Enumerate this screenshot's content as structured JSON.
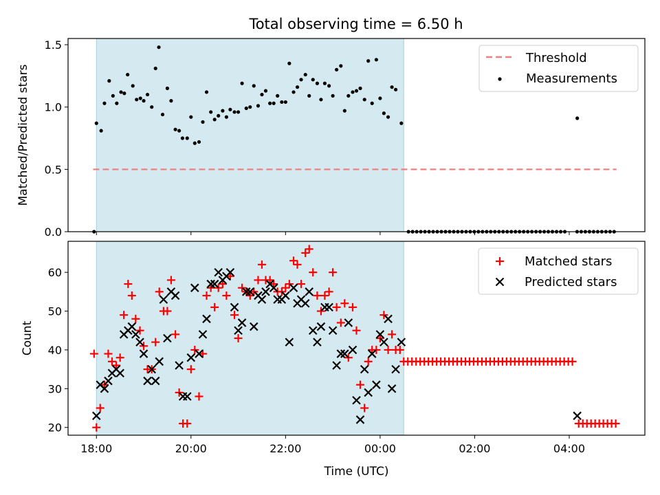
{
  "chart_data": [
    {
      "type": "scatter",
      "title": "Total observing time = 6.50 h",
      "xlabel": "",
      "ylabel": "Matched/Predicted stars",
      "xlim": [
        -0.6,
        11.6
      ],
      "ylim": [
        0,
        1.55
      ],
      "yticks": [
        0.0,
        0.5,
        1.0,
        1.5
      ],
      "ytick_labels": [
        "0.0",
        "0.5",
        "1.0",
        "1.5"
      ],
      "grid": false,
      "legend": "upper right",
      "shaded_interval": [
        0.0,
        6.5
      ],
      "shade_color": "#d4eaf0",
      "series": [
        {
          "name": "Threshold",
          "kind": "dashed-line",
          "color": "#f08080",
          "x": [
            -0.07,
            11.0
          ],
          "y": [
            0.5,
            0.5
          ]
        },
        {
          "name": "Measurements",
          "kind": "dot",
          "color": "#000000",
          "points": [
            [
              -0.05,
              0.0
            ],
            [
              0.0,
              0.87
            ],
            [
              0.1,
              0.81
            ],
            [
              0.17,
              1.03
            ],
            [
              0.27,
              1.21
            ],
            [
              0.35,
              1.09
            ],
            [
              0.43,
              1.03
            ],
            [
              0.52,
              1.12
            ],
            [
              0.59,
              1.11
            ],
            [
              0.66,
              1.26
            ],
            [
              0.77,
              1.17
            ],
            [
              0.85,
              1.06
            ],
            [
              0.93,
              1.07
            ],
            [
              1.0,
              1.05
            ],
            [
              1.08,
              1.1
            ],
            [
              1.17,
              1.0
            ],
            [
              1.25,
              1.31
            ],
            [
              1.32,
              1.48
            ],
            [
              1.4,
              0.94
            ],
            [
              1.5,
              1.15
            ],
            [
              1.58,
              1.05
            ],
            [
              1.67,
              0.82
            ],
            [
              1.75,
              0.81
            ],
            [
              1.82,
              0.75
            ],
            [
              1.92,
              0.75
            ],
            [
              2.0,
              0.92
            ],
            [
              2.08,
              0.71
            ],
            [
              2.17,
              0.72
            ],
            [
              2.25,
              0.88
            ],
            [
              2.33,
              1.12
            ],
            [
              2.42,
              0.96
            ],
            [
              2.5,
              0.9
            ],
            [
              2.58,
              0.93
            ],
            [
              2.67,
              0.97
            ],
            [
              2.75,
              0.92
            ],
            [
              2.83,
              0.98
            ],
            [
              2.92,
              0.96
            ],
            [
              3.0,
              0.96
            ],
            [
              3.08,
              1.19
            ],
            [
              3.17,
              0.99
            ],
            [
              3.25,
              1.0
            ],
            [
              3.33,
              1.17
            ],
            [
              3.42,
              1.01
            ],
            [
              3.5,
              1.1
            ],
            [
              3.58,
              1.13
            ],
            [
              3.67,
              1.03
            ],
            [
              3.75,
              1.03
            ],
            [
              3.83,
              1.09
            ],
            [
              3.92,
              1.04
            ],
            [
              4.0,
              1.04
            ],
            [
              4.08,
              1.35
            ],
            [
              4.17,
              1.12
            ],
            [
              4.25,
              1.16
            ],
            [
              4.33,
              1.22
            ],
            [
              4.42,
              1.26
            ],
            [
              4.5,
              1.09
            ],
            [
              4.58,
              1.22
            ],
            [
              4.67,
              1.19
            ],
            [
              4.75,
              1.06
            ],
            [
              4.83,
              1.19
            ],
            [
              4.92,
              1.17
            ],
            [
              5.0,
              1.09
            ],
            [
              5.08,
              1.3
            ],
            [
              5.17,
              1.33
            ],
            [
              5.25,
              0.97
            ],
            [
              5.33,
              1.09
            ],
            [
              5.42,
              1.12
            ],
            [
              5.5,
              1.13
            ],
            [
              5.58,
              1.15
            ],
            [
              5.67,
              1.06
            ],
            [
              5.75,
              1.37
            ],
            [
              5.83,
              1.03
            ],
            [
              5.92,
              1.38
            ],
            [
              6.0,
              1.07
            ],
            [
              6.08,
              0.95
            ],
            [
              6.17,
              0.92
            ],
            [
              6.25,
              1.16
            ],
            [
              6.33,
              1.14
            ],
            [
              6.45,
              0.87
            ],
            [
              10.17,
              0.91
            ]
          ],
          "zero_run": {
            "from": 6.6,
            "to": 11.0,
            "step": 0.087,
            "y": 0.0,
            "gap": [
              9.97,
              10.12
            ]
          }
        }
      ]
    },
    {
      "type": "scatter",
      "title": "",
      "xlabel": "Time (UTC)",
      "ylabel": "Count",
      "xlim": [
        -0.6,
        11.6
      ],
      "ylim": [
        18.0,
        68.0
      ],
      "xticks": [
        0,
        2,
        4,
        6,
        8,
        10
      ],
      "xtick_labels": [
        "18:00",
        "20:00",
        "22:00",
        "00:00",
        "02:00",
        "04:00"
      ],
      "yticks": [
        20,
        30,
        40,
        50,
        60
      ],
      "ytick_labels": [
        "20",
        "30",
        "40",
        "50",
        "60"
      ],
      "grid": false,
      "legend": "upper right",
      "shaded_interval": [
        0.0,
        6.5
      ],
      "shade_color": "#d4eaf0",
      "series": [
        {
          "name": "Matched stars",
          "marker": "+",
          "color": "#ff0000",
          "points": [
            [
              -0.05,
              39
            ],
            [
              0.0,
              20
            ],
            [
              0.08,
              25
            ],
            [
              0.17,
              31
            ],
            [
              0.25,
              39
            ],
            [
              0.33,
              37
            ],
            [
              0.42,
              36
            ],
            [
              0.5,
              38
            ],
            [
              0.58,
              49
            ],
            [
              0.67,
              57
            ],
            [
              0.75,
              54
            ],
            [
              0.83,
              48
            ],
            [
              0.92,
              45
            ],
            [
              1.0,
              41
            ],
            [
              1.08,
              35
            ],
            [
              1.17,
              35
            ],
            [
              1.25,
              42
            ],
            [
              1.33,
              55
            ],
            [
              1.42,
              50
            ],
            [
              1.5,
              50
            ],
            [
              1.58,
              58
            ],
            [
              1.67,
              44
            ],
            [
              1.75,
              29
            ],
            [
              1.83,
              21
            ],
            [
              1.92,
              21
            ],
            [
              2.0,
              35
            ],
            [
              2.08,
              40
            ],
            [
              2.17,
              28
            ],
            [
              2.25,
              39
            ],
            [
              2.33,
              54
            ],
            [
              2.42,
              56
            ],
            [
              2.5,
              51
            ],
            [
              2.58,
              56
            ],
            [
              2.67,
              57
            ],
            [
              2.75,
              54
            ],
            [
              2.83,
              59
            ],
            [
              2.92,
              49
            ],
            [
              3.0,
              43
            ],
            [
              3.08,
              56
            ],
            [
              3.17,
              55
            ],
            [
              3.25,
              54
            ],
            [
              3.33,
              55
            ],
            [
              3.42,
              58
            ],
            [
              3.5,
              62
            ],
            [
              3.58,
              58
            ],
            [
              3.67,
              58
            ],
            [
              3.75,
              57
            ],
            [
              3.83,
              55
            ],
            [
              3.92,
              55
            ],
            [
              4.0,
              56
            ],
            [
              4.08,
              57
            ],
            [
              4.17,
              63
            ],
            [
              4.25,
              62
            ],
            [
              4.33,
              57
            ],
            [
              4.42,
              65
            ],
            [
              4.5,
              66
            ],
            [
              4.58,
              60
            ],
            [
              4.67,
              54
            ],
            [
              4.75,
              50
            ],
            [
              4.83,
              54
            ],
            [
              4.92,
              55
            ],
            [
              5.0,
              60
            ],
            [
              5.08,
              51
            ],
            [
              5.17,
              47
            ],
            [
              5.25,
              52
            ],
            [
              5.33,
              38
            ],
            [
              5.42,
              51
            ],
            [
              5.5,
              45
            ],
            [
              5.58,
              31
            ],
            [
              5.67,
              25
            ],
            [
              5.75,
              37
            ],
            [
              5.83,
              40
            ],
            [
              5.92,
              40
            ],
            [
              6.0,
              43
            ],
            [
              6.08,
              49
            ],
            [
              6.17,
              40
            ],
            [
              6.25,
              44
            ],
            [
              6.33,
              40
            ],
            [
              6.42,
              40
            ]
          ],
          "constant_runs": [
            {
              "from": 6.5,
              "to": 10.1,
              "step": 0.087,
              "y": 37
            },
            {
              "from": 10.2,
              "to": 11.0,
              "step": 0.087,
              "y": 21
            }
          ]
        },
        {
          "name": "Predicted stars",
          "marker": "x",
          "color": "#000000",
          "points": [
            [
              0.0,
              23
            ],
            [
              0.08,
              31
            ],
            [
              0.17,
              30
            ],
            [
              0.25,
              32
            ],
            [
              0.33,
              34
            ],
            [
              0.42,
              35
            ],
            [
              0.5,
              34
            ],
            [
              0.58,
              44
            ],
            [
              0.67,
              45
            ],
            [
              0.75,
              46
            ],
            [
              0.83,
              44
            ],
            [
              0.92,
              42
            ],
            [
              1.0,
              39
            ],
            [
              1.08,
              32
            ],
            [
              1.17,
              35
            ],
            [
              1.25,
              32
            ],
            [
              1.33,
              37
            ],
            [
              1.42,
              53
            ],
            [
              1.5,
              43
            ],
            [
              1.58,
              55
            ],
            [
              1.67,
              54
            ],
            [
              1.75,
              36
            ],
            [
              1.83,
              28
            ],
            [
              1.92,
              28
            ],
            [
              2.0,
              38
            ],
            [
              2.08,
              56
            ],
            [
              2.17,
              39
            ],
            [
              2.25,
              44
            ],
            [
              2.33,
              48
            ],
            [
              2.42,
              57
            ],
            [
              2.5,
              57
            ],
            [
              2.58,
              60
            ],
            [
              2.67,
              58
            ],
            [
              2.75,
              59
            ],
            [
              2.83,
              60
            ],
            [
              2.92,
              51
            ],
            [
              3.0,
              45
            ],
            [
              3.08,
              47
            ],
            [
              3.17,
              55
            ],
            [
              3.25,
              55
            ],
            [
              3.33,
              46
            ],
            [
              3.42,
              54
            ],
            [
              3.5,
              53
            ],
            [
              3.58,
              55
            ],
            [
              3.67,
              57
            ],
            [
              3.75,
              56
            ],
            [
              3.83,
              53
            ],
            [
              3.92,
              53
            ],
            [
              4.0,
              54
            ],
            [
              4.08,
              42
            ],
            [
              4.17,
              56
            ],
            [
              4.25,
              52
            ],
            [
              4.33,
              53
            ],
            [
              4.42,
              52
            ],
            [
              4.5,
              55
            ],
            [
              4.58,
              45
            ],
            [
              4.67,
              42
            ],
            [
              4.75,
              46
            ],
            [
              4.83,
              51
            ],
            [
              4.92,
              51
            ],
            [
              5.0,
              45
            ],
            [
              5.08,
              36
            ],
            [
              5.17,
              39
            ],
            [
              5.25,
              39
            ],
            [
              5.33,
              47
            ],
            [
              5.42,
              40
            ],
            [
              5.5,
              27
            ],
            [
              5.58,
              22
            ],
            [
              5.67,
              35
            ],
            [
              5.75,
              29
            ],
            [
              5.83,
              39
            ],
            [
              5.92,
              31
            ],
            [
              6.0,
              44
            ],
            [
              6.08,
              42
            ],
            [
              6.17,
              48
            ],
            [
              6.25,
              30
            ],
            [
              6.33,
              35
            ],
            [
              6.45,
              42
            ],
            [
              10.17,
              23
            ]
          ]
        }
      ]
    }
  ]
}
